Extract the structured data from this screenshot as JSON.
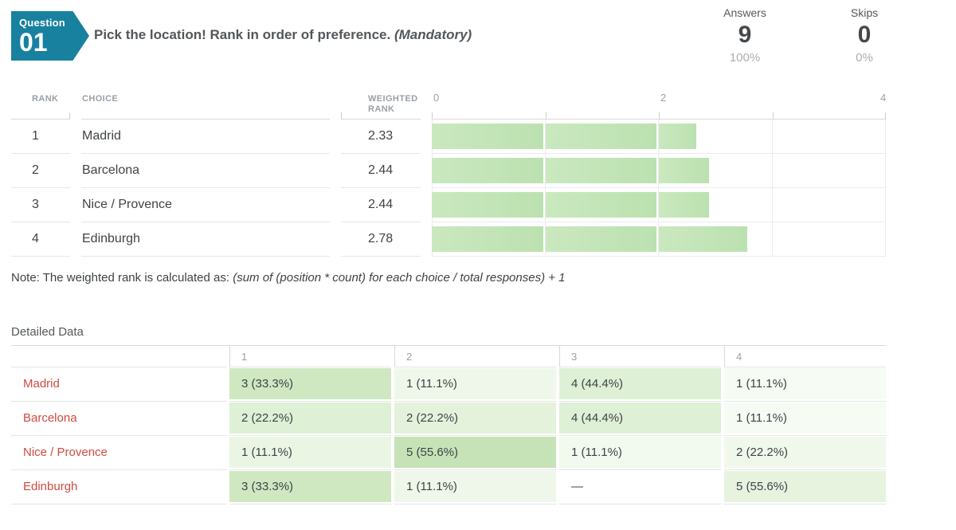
{
  "header": {
    "badge": {
      "label": "Question",
      "number": "01",
      "color": "#17819f"
    },
    "title": "Pick the location! Rank in order of preference.",
    "mandatory": "(Mandatory)",
    "stats": [
      {
        "label": "Answers",
        "value": "9",
        "percent": "100%"
      },
      {
        "label": "Skips",
        "value": "0",
        "percent": "0%"
      }
    ]
  },
  "rank_table": {
    "column_headers": {
      "rank": "RANK",
      "choice": "CHOICE",
      "weighted": "WEIGHTED RANK"
    },
    "rows": [
      {
        "rank": "1",
        "choice": "Madrid",
        "weighted": "2.33",
        "value": 2.33
      },
      {
        "rank": "2",
        "choice": "Barcelona",
        "weighted": "2.44",
        "value": 2.44
      },
      {
        "rank": "3",
        "choice": "Nice / Provence",
        "weighted": "2.44",
        "value": 2.44
      },
      {
        "rank": "4",
        "choice": "Edinburgh",
        "weighted": "2.78",
        "value": 2.78
      }
    ]
  },
  "chart_data": {
    "type": "bar",
    "orientation": "horizontal",
    "categories": [
      "Madrid",
      "Barcelona",
      "Nice / Provence",
      "Edinburgh"
    ],
    "values": [
      2.33,
      2.44,
      2.44,
      2.78
    ],
    "value_label": "Weighted Rank",
    "xlim": [
      0,
      4
    ],
    "x_tick_labels": [
      "0",
      "2",
      "4"
    ],
    "x_tick_values": [
      0,
      2,
      4
    ],
    "gridline_interval": 1,
    "grid": true,
    "bar_color": "#bce1b0"
  },
  "note": {
    "prefix": "Note: The weighted rank is calculated as: ",
    "formula": "(sum of (position * count) for each choice / total responses) + 1"
  },
  "detailed": {
    "heading": "Detailed Data",
    "column_headers": [
      "1",
      "2",
      "3",
      "4"
    ],
    "rows": [
      {
        "label": "Madrid",
        "cells": [
          {
            "text": "3 (33.3%)",
            "bg": "#cfe8c2"
          },
          {
            "text": "1 (11.1%)",
            "bg": "#eef7e9"
          },
          {
            "text": "4 (44.4%)",
            "bg": "#def0d5"
          },
          {
            "text": "1 (11.1%)",
            "bg": "#f6fbf3"
          }
        ]
      },
      {
        "label": "Barcelona",
        "cells": [
          {
            "text": "2 (22.2%)",
            "bg": "#def0d5"
          },
          {
            "text": "2 (22.2%)",
            "bg": "#e4f2dc"
          },
          {
            "text": "4 (44.4%)",
            "bg": "#def0d5"
          },
          {
            "text": "1 (11.1%)",
            "bg": "#f6fbf3"
          }
        ]
      },
      {
        "label": "Nice / Provence",
        "cells": [
          {
            "text": "1 (11.1%)",
            "bg": "#ebf5e4"
          },
          {
            "text": "5 (55.6%)",
            "bg": "#c5e3b7"
          },
          {
            "text": "1 (11.1%)",
            "bg": "#f2f9ee"
          },
          {
            "text": "2 (22.2%)",
            "bg": "#f0f8eb"
          }
        ]
      },
      {
        "label": "Edinburgh",
        "cells": [
          {
            "text": "3 (33.3%)",
            "bg": "#cfe8c2"
          },
          {
            "text": "1 (11.1%)",
            "bg": "#eef7e9"
          },
          {
            "text": "—",
            "bg": "#ffffff"
          },
          {
            "text": "5 (55.6%)",
            "bg": "#e7f3df"
          }
        ]
      }
    ]
  }
}
